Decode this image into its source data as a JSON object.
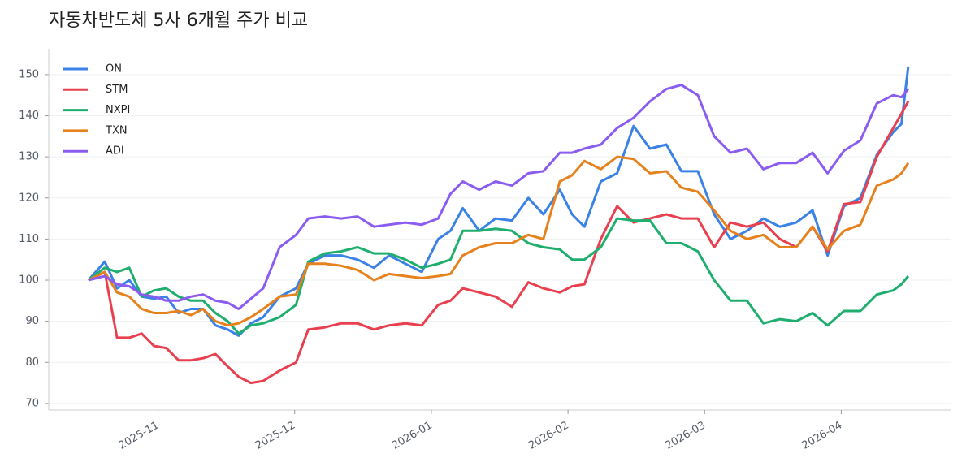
{
  "chart_data": {
    "type": "line",
    "title": "자동차반도체 5사 6개월 주가 비교",
    "x": [
      10.49,
      10.61,
      10.7,
      10.79,
      10.88,
      10.97,
      11.06,
      11.15,
      11.24,
      11.33,
      11.42,
      11.51,
      11.59,
      11.68,
      11.77,
      11.89,
      12.01,
      12.1,
      12.22,
      12.34,
      12.46,
      12.58,
      12.69,
      12.81,
      12.93,
      13.05,
      13.14,
      13.23,
      13.35,
      13.47,
      13.59,
      13.71,
      13.82,
      13.94,
      14.03,
      14.12,
      14.24,
      14.36,
      14.48,
      14.6,
      14.72,
      14.83,
      14.95,
      15.07,
      15.19,
      15.31,
      15.43,
      15.55,
      15.67,
      15.79,
      15.9,
      16.02,
      16.14,
      16.26,
      16.38,
      16.44,
      16.49
    ],
    "xlim": [
      10.2,
      16.8
    ],
    "xticks": [
      {
        "value": 11,
        "label": "2025-11"
      },
      {
        "value": 12,
        "label": "2025-12"
      },
      {
        "value": 13,
        "label": "2026-01"
      },
      {
        "value": 14,
        "label": "2026-02"
      },
      {
        "value": 15,
        "label": "2026-03"
      },
      {
        "value": 16,
        "label": "2026-04"
      }
    ],
    "ylim": [
      68.4,
      156.3
    ],
    "yticks": [
      70,
      80,
      90,
      100,
      110,
      120,
      130,
      140,
      150
    ],
    "grid": true,
    "legend": "upper-left",
    "series": [
      {
        "name": "ON",
        "color": "#3b82e6",
        "values": [
          100,
          104.5,
          98,
          100,
          96,
          95.5,
          96,
          92,
          93,
          93,
          89,
          88,
          86.5,
          89.5,
          91,
          96,
          98,
          104,
          106,
          106,
          105,
          103,
          106,
          104,
          102,
          110,
          112,
          117.5,
          112,
          115,
          114.5,
          120,
          116,
          122,
          116,
          113,
          124,
          126,
          137.5,
          132,
          133,
          126.5,
          126.5,
          116,
          110,
          112,
          115,
          113,
          114,
          117,
          106,
          118,
          120,
          130.5,
          136,
          138,
          152
        ]
      },
      {
        "name": "STM",
        "color": "#e8404f",
        "values": [
          100,
          102,
          86,
          86,
          87,
          84,
          83.5,
          80.5,
          80.5,
          81,
          82,
          79,
          76.5,
          75,
          75.5,
          78,
          80,
          88,
          88.5,
          89.5,
          89.5,
          88,
          89,
          89.5,
          89,
          94,
          95,
          98,
          97,
          96,
          93.5,
          99.5,
          98,
          97,
          98.5,
          99,
          110,
          118,
          114,
          115,
          116,
          115,
          115,
          108,
          114,
          113,
          114,
          110,
          108,
          113,
          107,
          118.5,
          119,
          130,
          137,
          140.5,
          143.5
        ]
      },
      {
        "name": "NXPI",
        "color": "#1fae6e",
        "values": [
          100,
          103,
          102,
          103,
          96,
          97.5,
          98,
          96,
          95,
          95,
          92,
          90,
          87,
          89,
          89.5,
          91,
          94,
          104.5,
          106.5,
          107,
          108,
          106.5,
          106.5,
          105,
          103,
          104,
          105,
          112,
          112,
          112.5,
          112,
          109,
          108,
          107.5,
          105,
          105,
          108,
          115,
          114.5,
          114.5,
          109,
          109,
          107,
          100,
          95,
          95,
          89.5,
          90.5,
          90,
          92,
          89,
          92.5,
          92.5,
          96.5,
          97.5,
          99,
          101
        ]
      },
      {
        "name": "TXN",
        "color": "#e6821e",
        "values": [
          100,
          102,
          97,
          96,
          93,
          92,
          92,
          92.5,
          91.5,
          93,
          90,
          89,
          89.5,
          91,
          93,
          96,
          96.5,
          104,
          104,
          103.5,
          102.5,
          100,
          101.5,
          101,
          100.5,
          101,
          101.5,
          106,
          108,
          109,
          109,
          111,
          110,
          124,
          125.5,
          129,
          127,
          130,
          129.5,
          126,
          126.5,
          122.5,
          121.5,
          117,
          112,
          110,
          111,
          108,
          108,
          113,
          107.5,
          112,
          113.5,
          123,
          124.5,
          126,
          128.5
        ]
      },
      {
        "name": "ADI",
        "color": "#8b5cf0",
        "values": [
          100,
          101,
          99,
          98.5,
          96.5,
          96,
          95,
          95,
          96,
          96.5,
          95,
          94.5,
          93,
          95.5,
          98,
          108,
          111,
          115,
          115.5,
          115,
          115.5,
          113,
          113.5,
          114,
          113.5,
          115,
          121,
          124,
          122,
          124,
          123,
          126,
          126.5,
          131,
          131,
          132,
          133,
          137,
          139.5,
          143.5,
          146.5,
          147.5,
          145,
          135,
          131,
          132,
          127,
          128.5,
          128.5,
          131,
          126,
          131.5,
          134,
          143,
          145,
          144.5,
          146.5
        ]
      }
    ]
  }
}
